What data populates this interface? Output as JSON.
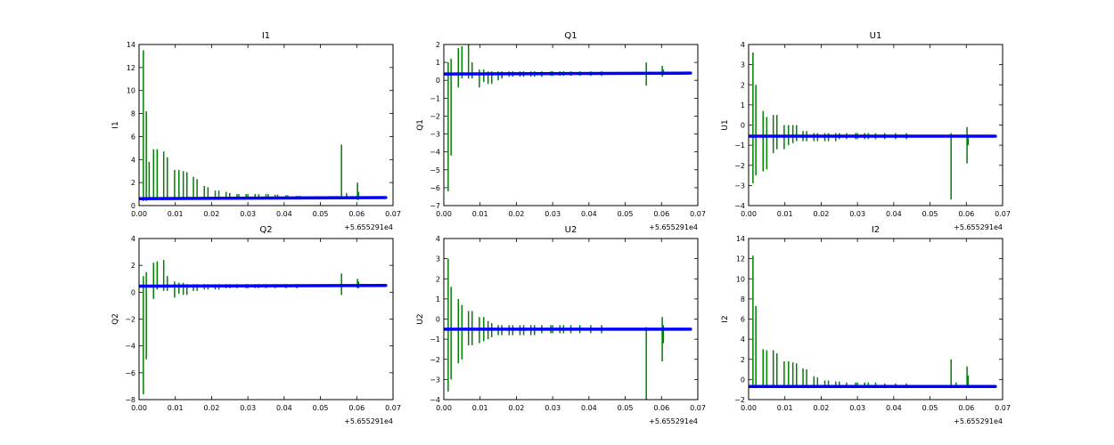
{
  "colors": {
    "data": "#0000ff",
    "error": "#007f00",
    "axes": "#000000",
    "background": "#ffffff"
  },
  "chart_data": [
    {
      "type": "scatter",
      "title": "I1",
      "xlabel": "",
      "ylabel": "I1",
      "x_offset_label": "+5.655291e4",
      "xlim": [
        0.0,
        0.07
      ],
      "ylim": [
        0,
        14
      ],
      "xticks": [
        "0.00",
        "0.01",
        "0.02",
        "0.03",
        "0.04",
        "0.05",
        "0.06",
        "0.07"
      ],
      "yticks": [
        "0",
        "2",
        "4",
        "6",
        "8",
        "10",
        "12",
        "14"
      ],
      "baseline": [
        [
          0.0,
          0.6
        ],
        [
          0.068,
          0.7
        ]
      ],
      "spikes": [
        [
          0.0012,
          0.4,
          13.5
        ],
        [
          0.002,
          0.4,
          8.2
        ],
        [
          0.0028,
          0.5,
          3.8
        ],
        [
          0.004,
          0.5,
          4.9
        ],
        [
          0.005,
          0.5,
          4.9
        ],
        [
          0.0068,
          0.5,
          4.7
        ],
        [
          0.0078,
          0.5,
          4.2
        ],
        [
          0.0098,
          0.5,
          3.1
        ],
        [
          0.011,
          0.5,
          3.1
        ],
        [
          0.0122,
          0.5,
          3.0
        ],
        [
          0.0132,
          0.5,
          2.9
        ],
        [
          0.015,
          0.5,
          2.5
        ],
        [
          0.016,
          0.5,
          2.3
        ],
        [
          0.018,
          0.5,
          1.7
        ],
        [
          0.019,
          0.5,
          1.6
        ],
        [
          0.021,
          0.5,
          1.3
        ],
        [
          0.022,
          0.5,
          1.3
        ],
        [
          0.024,
          0.5,
          1.2
        ],
        [
          0.025,
          0.5,
          1.1
        ],
        [
          0.027,
          0.5,
          1.0
        ],
        [
          0.0275,
          0.5,
          1.0
        ],
        [
          0.0295,
          0.6,
          1.0
        ],
        [
          0.03,
          0.6,
          1.0
        ],
        [
          0.032,
          0.6,
          1.0
        ],
        [
          0.033,
          0.6,
          1.0
        ],
        [
          0.035,
          0.6,
          1.0
        ],
        [
          0.0356,
          0.6,
          1.0
        ],
        [
          0.0375,
          0.6,
          0.95
        ],
        [
          0.0382,
          0.6,
          0.95
        ],
        [
          0.0405,
          0.6,
          0.9
        ],
        [
          0.041,
          0.6,
          0.9
        ],
        [
          0.0435,
          0.6,
          0.85
        ],
        [
          0.0442,
          0.6,
          0.85
        ],
        [
          0.0558,
          0.6,
          5.3
        ],
        [
          0.0572,
          0.6,
          1.1
        ],
        [
          0.0602,
          0.5,
          2.0
        ],
        [
          0.0605,
          0.5,
          1.2
        ]
      ]
    },
    {
      "type": "scatter",
      "title": "Q1",
      "xlabel": "",
      "ylabel": "Q1",
      "x_offset_label": "+5.655291e4",
      "xlim": [
        0.0,
        0.07
      ],
      "ylim": [
        -7,
        2
      ],
      "xticks": [
        "0.00",
        "0.01",
        "0.02",
        "0.03",
        "0.04",
        "0.05",
        "0.06",
        "0.07"
      ],
      "yticks": [
        "−7",
        "−6",
        "−5",
        "−4",
        "−3",
        "−2",
        "−1",
        "0",
        "1",
        "2"
      ],
      "baseline": [
        [
          0.0,
          0.35
        ],
        [
          0.068,
          0.4
        ]
      ],
      "spikes": [
        [
          0.0012,
          -6.2,
          1.0
        ],
        [
          0.002,
          -4.2,
          1.2
        ],
        [
          0.004,
          -0.4,
          1.8
        ],
        [
          0.005,
          0.1,
          1.9
        ],
        [
          0.0068,
          0.1,
          2.0
        ],
        [
          0.0078,
          0.1,
          1.0
        ],
        [
          0.0098,
          -0.4,
          0.6
        ],
        [
          0.011,
          -0.1,
          0.6
        ],
        [
          0.0122,
          -0.2,
          0.5
        ],
        [
          0.0132,
          -0.2,
          0.5
        ],
        [
          0.015,
          0.0,
          0.5
        ],
        [
          0.016,
          0.1,
          0.5
        ],
        [
          0.018,
          0.2,
          0.5
        ],
        [
          0.019,
          0.2,
          0.5
        ],
        [
          0.021,
          0.2,
          0.5
        ],
        [
          0.022,
          0.2,
          0.5
        ],
        [
          0.024,
          0.2,
          0.5
        ],
        [
          0.025,
          0.2,
          0.5
        ],
        [
          0.027,
          0.2,
          0.5
        ],
        [
          0.0295,
          0.25,
          0.5
        ],
        [
          0.03,
          0.25,
          0.5
        ],
        [
          0.032,
          0.25,
          0.5
        ],
        [
          0.033,
          0.25,
          0.5
        ],
        [
          0.035,
          0.25,
          0.5
        ],
        [
          0.0375,
          0.25,
          0.5
        ],
        [
          0.0405,
          0.25,
          0.5
        ],
        [
          0.0435,
          0.25,
          0.5
        ],
        [
          0.0558,
          -0.3,
          1.0
        ],
        [
          0.0602,
          0.2,
          0.8
        ],
        [
          0.0605,
          0.3,
          0.6
        ]
      ]
    },
    {
      "type": "scatter",
      "title": "U1",
      "xlabel": "",
      "ylabel": "U1",
      "x_offset_label": "+5.655291e4",
      "xlim": [
        0.0,
        0.07
      ],
      "ylim": [
        -4,
        4
      ],
      "xticks": [
        "0.00",
        "0.01",
        "0.02",
        "0.03",
        "0.04",
        "0.05",
        "0.06",
        "0.07"
      ],
      "yticks": [
        "−4",
        "−3",
        "−2",
        "−1",
        "0",
        "1",
        "2",
        "3",
        "4"
      ],
      "baseline": [
        [
          0.0,
          -0.55
        ],
        [
          0.068,
          -0.55
        ]
      ],
      "spikes": [
        [
          0.0012,
          -2.9,
          3.6
        ],
        [
          0.002,
          -2.5,
          2.0
        ],
        [
          0.004,
          -2.3,
          0.7
        ],
        [
          0.005,
          -2.2,
          0.4
        ],
        [
          0.0068,
          -1.4,
          0.5
        ],
        [
          0.0078,
          -1.2,
          0.5
        ],
        [
          0.0098,
          -1.2,
          0.0
        ],
        [
          0.011,
          -1.0,
          0.0
        ],
        [
          0.0122,
          -0.9,
          0.0
        ],
        [
          0.0132,
          -0.8,
          0.0
        ],
        [
          0.015,
          -0.8,
          -0.3
        ],
        [
          0.016,
          -0.8,
          -0.3
        ],
        [
          0.018,
          -0.8,
          -0.4
        ],
        [
          0.019,
          -0.8,
          -0.4
        ],
        [
          0.021,
          -0.8,
          -0.4
        ],
        [
          0.022,
          -0.8,
          -0.4
        ],
        [
          0.024,
          -0.8,
          -0.4
        ],
        [
          0.025,
          -0.7,
          -0.4
        ],
        [
          0.027,
          -0.7,
          -0.4
        ],
        [
          0.0295,
          -0.7,
          -0.4
        ],
        [
          0.03,
          -0.7,
          -0.4
        ],
        [
          0.032,
          -0.7,
          -0.4
        ],
        [
          0.033,
          -0.7,
          -0.4
        ],
        [
          0.035,
          -0.7,
          -0.4
        ],
        [
          0.0375,
          -0.7,
          -0.4
        ],
        [
          0.0405,
          -0.7,
          -0.4
        ],
        [
          0.0435,
          -0.7,
          -0.4
        ],
        [
          0.0558,
          -3.7,
          -0.4
        ],
        [
          0.0602,
          -1.9,
          -0.1
        ],
        [
          0.0605,
          -1.0,
          -0.5
        ]
      ]
    },
    {
      "type": "scatter",
      "title": "Q2",
      "xlabel": "",
      "ylabel": "Q2",
      "x_offset_label": "+5.655291e4",
      "xlim": [
        0.0,
        0.07
      ],
      "ylim": [
        -8,
        4
      ],
      "xticks": [
        "0.00",
        "0.01",
        "0.02",
        "0.03",
        "0.04",
        "0.05",
        "0.06",
        "0.07"
      ],
      "yticks": [
        "−8",
        "−6",
        "−4",
        "−2",
        "0",
        "2",
        "4"
      ],
      "baseline": [
        [
          0.0,
          0.45
        ],
        [
          0.068,
          0.5
        ]
      ],
      "spikes": [
        [
          0.0012,
          -7.6,
          1.2
        ],
        [
          0.002,
          -5.0,
          1.5
        ],
        [
          0.004,
          -0.5,
          2.2
        ],
        [
          0.005,
          0.2,
          2.3
        ],
        [
          0.0068,
          0.1,
          2.4
        ],
        [
          0.0078,
          0.1,
          1.2
        ],
        [
          0.0098,
          -0.4,
          0.8
        ],
        [
          0.011,
          -0.1,
          0.7
        ],
        [
          0.0122,
          -0.2,
          0.7
        ],
        [
          0.0132,
          -0.2,
          0.6
        ],
        [
          0.015,
          0.1,
          0.6
        ],
        [
          0.016,
          0.1,
          0.6
        ],
        [
          0.018,
          0.2,
          0.6
        ],
        [
          0.019,
          0.2,
          0.6
        ],
        [
          0.021,
          0.2,
          0.6
        ],
        [
          0.022,
          0.2,
          0.6
        ],
        [
          0.024,
          0.3,
          0.6
        ],
        [
          0.025,
          0.3,
          0.6
        ],
        [
          0.027,
          0.3,
          0.6
        ],
        [
          0.0295,
          0.3,
          0.6
        ],
        [
          0.03,
          0.3,
          0.6
        ],
        [
          0.032,
          0.3,
          0.6
        ],
        [
          0.033,
          0.3,
          0.6
        ],
        [
          0.035,
          0.3,
          0.6
        ],
        [
          0.0375,
          0.3,
          0.6
        ],
        [
          0.0405,
          0.3,
          0.6
        ],
        [
          0.0435,
          0.3,
          0.6
        ],
        [
          0.0558,
          -0.2,
          1.4
        ],
        [
          0.0602,
          0.3,
          1.0
        ],
        [
          0.0605,
          0.3,
          0.8
        ]
      ]
    },
    {
      "type": "scatter",
      "title": "U2",
      "xlabel": "",
      "ylabel": "U2",
      "x_offset_label": "+5.655291e4",
      "xlim": [
        0.0,
        0.07
      ],
      "ylim": [
        -4,
        4
      ],
      "xticks": [
        "0.00",
        "0.01",
        "0.02",
        "0.03",
        "0.04",
        "0.05",
        "0.06",
        "0.07"
      ],
      "yticks": [
        "−4",
        "−3",
        "−2",
        "−1",
        "0",
        "1",
        "2",
        "3",
        "4"
      ],
      "baseline": [
        [
          0.0,
          -0.5
        ],
        [
          0.068,
          -0.5
        ]
      ],
      "spikes": [
        [
          0.0012,
          -3.6,
          3.0
        ],
        [
          0.002,
          -3.0,
          1.6
        ],
        [
          0.004,
          -2.2,
          1.0
        ],
        [
          0.005,
          -2.0,
          0.7
        ],
        [
          0.0068,
          -1.3,
          0.4
        ],
        [
          0.0078,
          -1.3,
          0.4
        ],
        [
          0.0098,
          -1.2,
          0.1
        ],
        [
          0.011,
          -1.1,
          0.1
        ],
        [
          0.0122,
          -1.0,
          -0.1
        ],
        [
          0.0132,
          -0.9,
          -0.2
        ],
        [
          0.015,
          -0.8,
          -0.3
        ],
        [
          0.016,
          -0.8,
          -0.3
        ],
        [
          0.018,
          -0.8,
          -0.3
        ],
        [
          0.019,
          -0.8,
          -0.3
        ],
        [
          0.021,
          -0.8,
          -0.3
        ],
        [
          0.022,
          -0.8,
          -0.3
        ],
        [
          0.024,
          -0.8,
          -0.3
        ],
        [
          0.025,
          -0.8,
          -0.3
        ],
        [
          0.027,
          -0.7,
          -0.3
        ],
        [
          0.0295,
          -0.7,
          -0.3
        ],
        [
          0.03,
          -0.7,
          -0.3
        ],
        [
          0.032,
          -0.7,
          -0.3
        ],
        [
          0.033,
          -0.7,
          -0.3
        ],
        [
          0.035,
          -0.7,
          -0.3
        ],
        [
          0.0375,
          -0.7,
          -0.3
        ],
        [
          0.0405,
          -0.7,
          -0.3
        ],
        [
          0.0435,
          -0.7,
          -0.3
        ],
        [
          0.0558,
          -4.0,
          -0.4
        ],
        [
          0.0602,
          -2.1,
          0.1
        ],
        [
          0.0605,
          -1.2,
          -0.3
        ]
      ]
    },
    {
      "type": "scatter",
      "title": "I2",
      "xlabel": "",
      "ylabel": "I2",
      "x_offset_label": "+5.655291e4",
      "xlim": [
        0.0,
        0.07
      ],
      "ylim": [
        -2,
        14
      ],
      "xticks": [
        "0.00",
        "0.01",
        "0.02",
        "0.03",
        "0.04",
        "0.05",
        "0.06",
        "0.07"
      ],
      "yticks": [
        "−2",
        "0",
        "2",
        "4",
        "6",
        "8",
        "10",
        "12",
        "14"
      ],
      "baseline": [
        [
          0.0,
          -0.7
        ],
        [
          0.068,
          -0.7
        ]
      ],
      "spikes": [
        [
          0.0012,
          -0.8,
          12.3
        ],
        [
          0.002,
          -0.8,
          7.3
        ],
        [
          0.004,
          -0.8,
          3.0
        ],
        [
          0.005,
          -0.8,
          2.9
        ],
        [
          0.0068,
          -0.8,
          2.9
        ],
        [
          0.0078,
          -0.8,
          2.6
        ],
        [
          0.0098,
          -0.8,
          1.8
        ],
        [
          0.011,
          -0.8,
          1.8
        ],
        [
          0.0122,
          -0.8,
          1.7
        ],
        [
          0.0132,
          -0.8,
          1.6
        ],
        [
          0.015,
          -0.8,
          1.1
        ],
        [
          0.016,
          -0.8,
          1.0
        ],
        [
          0.018,
          -0.8,
          0.3
        ],
        [
          0.019,
          -0.8,
          0.2
        ],
        [
          0.021,
          -0.8,
          -0.1
        ],
        [
          0.022,
          -0.8,
          -0.1
        ],
        [
          0.024,
          -0.8,
          -0.2
        ],
        [
          0.025,
          -0.8,
          -0.2
        ],
        [
          0.027,
          -0.8,
          -0.3
        ],
        [
          0.0295,
          -0.8,
          -0.3
        ],
        [
          0.03,
          -0.8,
          -0.3
        ],
        [
          0.032,
          -0.8,
          -0.3
        ],
        [
          0.033,
          -0.8,
          -0.3
        ],
        [
          0.035,
          -0.8,
          -0.3
        ],
        [
          0.0375,
          -0.8,
          -0.4
        ],
        [
          0.0405,
          -0.8,
          -0.4
        ],
        [
          0.0435,
          -0.8,
          -0.4
        ],
        [
          0.0558,
          -0.8,
          2.0
        ],
        [
          0.0572,
          -0.8,
          -0.3
        ],
        [
          0.0602,
          -0.8,
          1.3
        ],
        [
          0.0605,
          -0.8,
          0.4
        ]
      ]
    }
  ]
}
